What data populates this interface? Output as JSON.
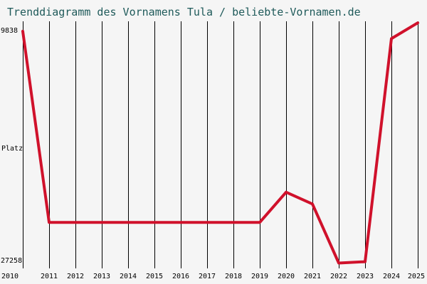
{
  "chart_data": {
    "type": "line",
    "title": "Trenddiagramm des Vornamens Tula / beliebte-Vornamen.de",
    "ylabel": "Platz",
    "y_inverted": true,
    "ylim": [
      9838,
      27258
    ],
    "ytick_labels": [
      "9838",
      "27258"
    ],
    "x": [
      2010,
      2011,
      2012,
      2013,
      2014,
      2015,
      2016,
      2017,
      2018,
      2019,
      2020,
      2021,
      2022,
      2023,
      2024,
      2025
    ],
    "series": [
      {
        "name": "Tula",
        "values": [
          9838,
          24400,
          24400,
          24400,
          24400,
          24400,
          24400,
          24400,
          24400,
          24400,
          22100,
          23000,
          27500,
          27400,
          10400,
          9200
        ]
      }
    ],
    "line_color": "#d0112b",
    "grid": "vertical lines per year",
    "background": "#f5f5f5"
  }
}
